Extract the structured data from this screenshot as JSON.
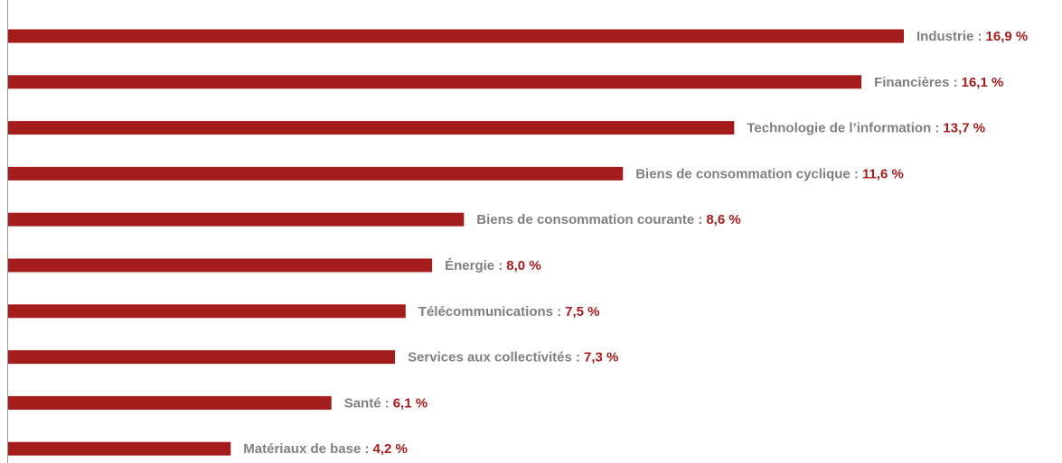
{
  "chart_data": {
    "type": "bar",
    "orientation": "horizontal",
    "categories": [
      "Industrie :",
      "Financières :",
      "Technologie de l’information :",
      "Biens de consommation cyclique :",
      "Biens de consommation courante :",
      "Énergie :",
      "Télécommunications :",
      "Services aux collectivités :",
      "Santé :",
      "Matériaux de base :"
    ],
    "values": [
      16.9,
      16.1,
      13.7,
      11.6,
      8.6,
      8.0,
      7.5,
      7.3,
      6.1,
      4.2
    ],
    "value_labels": [
      "16,9 %",
      "16,1 %",
      "13,7 %",
      "11,6 %",
      "8,6 %",
      "8,0 %",
      "7,5 %",
      "7,3 %",
      "6,1 %",
      "4,2 %"
    ],
    "color": "#a51c1c",
    "label_color": "#808080"
  }
}
